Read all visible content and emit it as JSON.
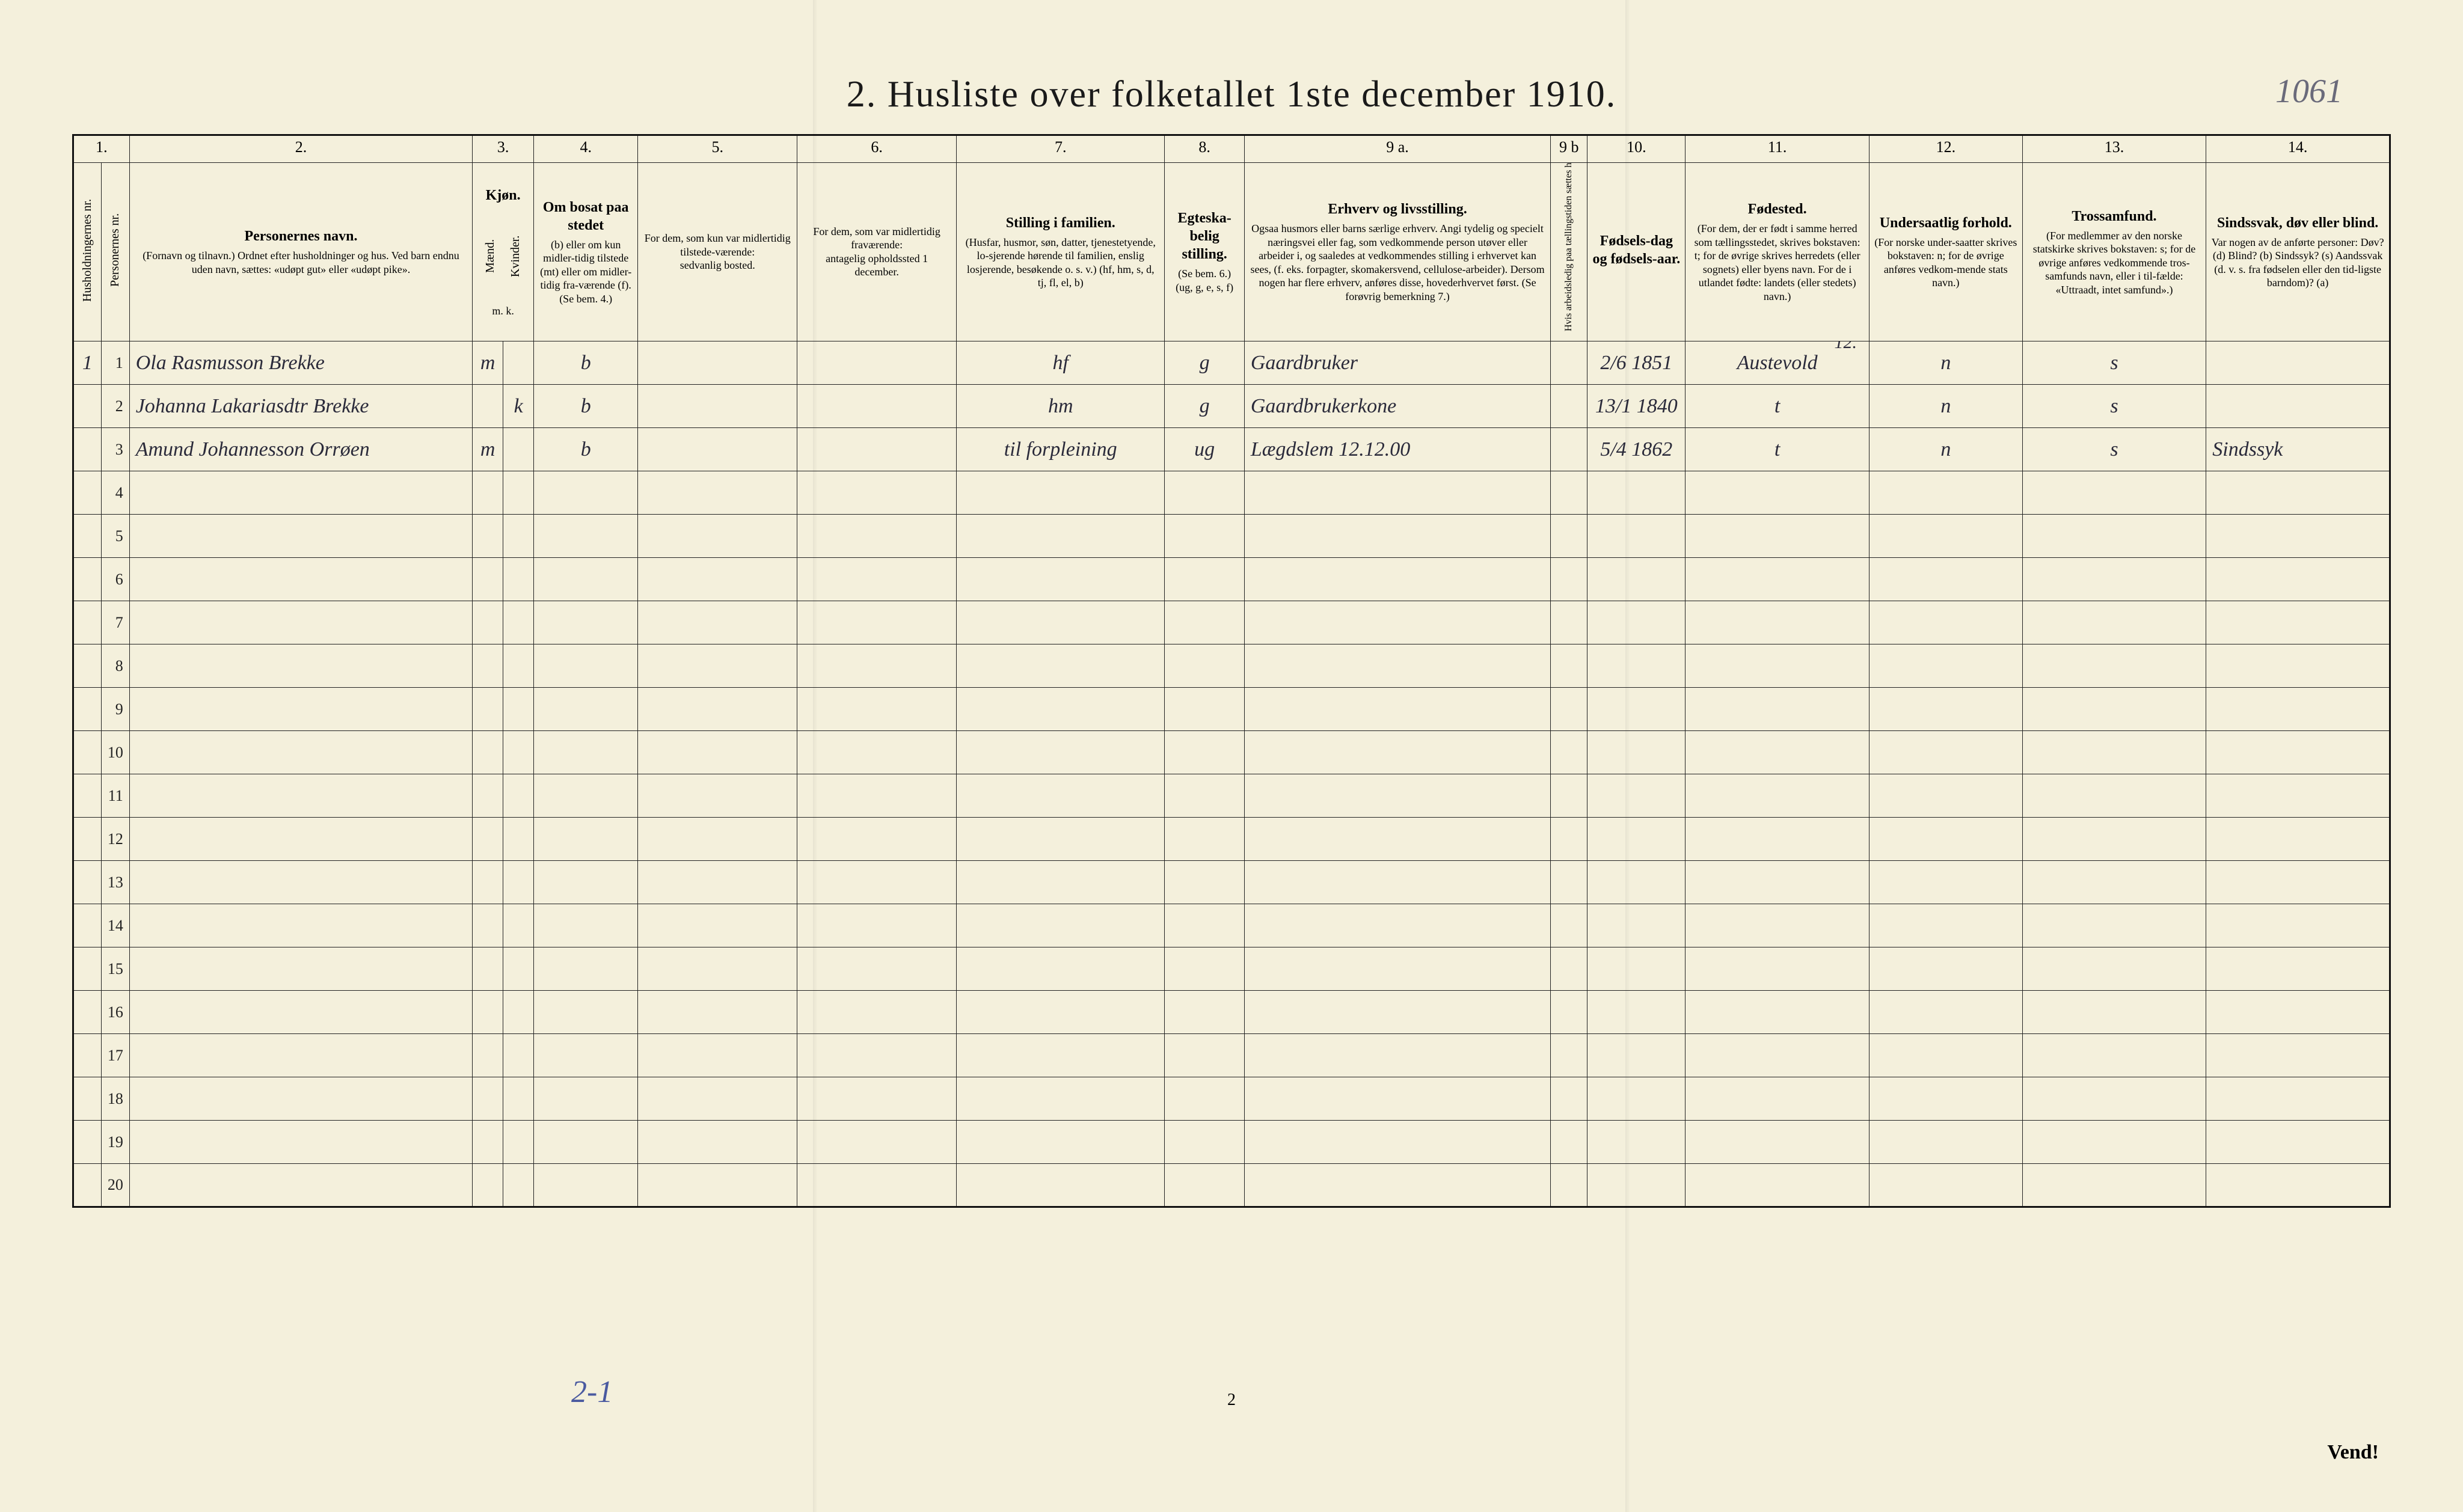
{
  "corner_note": "1061",
  "title": "2.  Husliste over folketallet 1ste december 1910.",
  "footer_handwritten": "2-1",
  "page_number": "2",
  "vend": "Vend!",
  "column_numbers": [
    "1.",
    "",
    "2.",
    "3.",
    "",
    "4.",
    "5.",
    "6.",
    "7.",
    "8.",
    "9 a.",
    "9 b",
    "10.",
    "11.",
    "12.",
    "13.",
    "14."
  ],
  "headers": {
    "c1": "Husholdningernes nr.",
    "c1b": "Personernes nr.",
    "c2_strong": "Personernes navn.",
    "c2_small": "(Fornavn og tilnavn.)\nOrdnet efter husholdninger og hus.\nVed barn endnu uden navn, sættes: «udøpt gut» eller «udøpt pike».",
    "c3_strong": "Kjøn.",
    "c3_small": "Mænd.   Kvinder.",
    "c3_mk": "m.  k.",
    "c4_strong": "Om bosat paa stedet",
    "c4_small": "(b) eller om kun midler-tidig tilstede (mt) eller om midler-tidig fra-værende (f).\n(Se bem. 4.)",
    "c5_strong": "For dem, som kun var midlertidig tilstede-værende:",
    "c5_small": "sedvanlig bosted.",
    "c6_strong": "For dem, som var midlertidig fraværende:",
    "c6_small": "antagelig opholdssted 1 december.",
    "c7_strong": "Stilling i familien.",
    "c7_small": "(Husfar, husmor, søn, datter, tjenestetyende, lo-sjerende hørende til familien, enslig losjerende, besøkende o. s. v.)\n(hf, hm, s, d, tj, fl, el, b)",
    "c8_strong": "Egteska-belig stilling.",
    "c8_small": "(Se bem. 6.)\n(ug, g, e, s, f)",
    "c9_strong": "Erhverv og livsstilling.",
    "c9_small": "Ogsaa husmors eller barns særlige erhverv. Angi tydelig og specielt næringsvei eller fag, som vedkommende person utøver eller arbeider i, og saaledes at vedkommendes stilling i erhvervet kan sees, (f. eks. forpagter, skomakersvend, cellulose-arbeider). Dersom nogen har flere erhverv, anføres disse, hovederhvervet først.\n(Se forøvrig bemerkning 7.)",
    "c9b": "Hvis arbeidsledig paa tællingstiden sættes her bokstaven: l.",
    "c10_strong": "Fødsels-dag og fødsels-aar.",
    "c11_strong": "Fødested.",
    "c11_small": "(For dem, der er født i samme herred som tællingsstedet, skrives bokstaven: t; for de øvrige skrives herredets (eller sognets) eller byens navn. For de i utlandet fødte: landets (eller stedets) navn.)",
    "c12_strong": "Undersaatlig forhold.",
    "c12_small": "(For norske under-saatter skrives bokstaven: n; for de øvrige anføres vedkom-mende stats navn.)",
    "c13_strong": "Trossamfund.",
    "c13_small": "(For medlemmer av den norske statskirke skrives bokstaven: s; for de øvrige anføres vedkommende tros-samfunds navn, eller i til-fælde: «Uttraadt, intet samfund».)",
    "c14_strong": "Sindssvak, døv eller blind.",
    "c14_small": "Var nogen av de anførte personer:\nDøv? (d)\nBlind? (b)\nSindssyk? (s)\nAandssvak (d. v. s. fra fødselen eller den tid-ligste barndom)? (a)"
  },
  "colnote_12": "12.",
  "rows": [
    {
      "hnr": "1",
      "pnr": "1",
      "name": "Ola Rasmusson Brekke",
      "sex_m": "m",
      "sex_k": "",
      "bosat": "b",
      "mt": "",
      "frav": "",
      "familie": "hf",
      "egt": "g",
      "erhverv": "Gaardbruker",
      "fdato": "2/6 1851",
      "fsted": "Austevold",
      "und": "n",
      "tro": "s",
      "svak": ""
    },
    {
      "hnr": "",
      "pnr": "2",
      "name": "Johanna Lakariasdtr Brekke",
      "sex_m": "",
      "sex_k": "k",
      "bosat": "b",
      "mt": "",
      "frav": "",
      "familie": "hm",
      "egt": "g",
      "erhverv": "Gaardbrukerkone",
      "fdato": "13/1 1840",
      "fsted": "t",
      "und": "n",
      "tro": "s",
      "svak": ""
    },
    {
      "hnr": "",
      "pnr": "3",
      "name": "Amund Johannesson Orrøen",
      "sex_m": "m",
      "sex_k": "",
      "bosat": "b",
      "mt": "",
      "frav": "",
      "familie": "til forpleining",
      "egt": "ug",
      "erhverv": "Lægdslem 12.12.00",
      "fdato": "5/4 1862",
      "fsted": "t",
      "und": "n",
      "tro": "s",
      "svak": "Sindssyk"
    }
  ],
  "blank_rows": [
    4,
    5,
    6,
    7,
    8,
    9,
    10,
    11,
    12,
    13,
    14,
    15,
    16,
    17,
    18,
    19,
    20
  ],
  "colors": {
    "paper": "#f4f0dc",
    "ink": "#1a1a1a",
    "pencil": "#6a6a7a",
    "blue_pencil": "#4a5aa0",
    "line": "#222222"
  }
}
